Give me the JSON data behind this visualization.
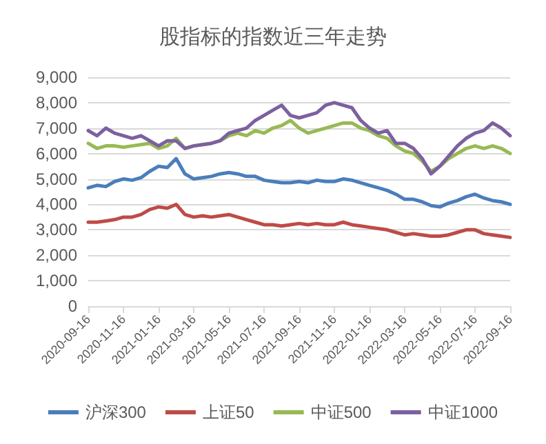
{
  "chart_data": {
    "type": "line",
    "title": "股指标的指数近三年走势",
    "categories": [
      "2020-09-16",
      null,
      null,
      null,
      "2020-11-16",
      null,
      null,
      null,
      "2021-01-16",
      null,
      null,
      null,
      "2021-03-16",
      null,
      null,
      null,
      "2021-05-16",
      null,
      null,
      null,
      "2021-07-16",
      null,
      null,
      null,
      "2021-09-16",
      null,
      null,
      null,
      "2021-11-16",
      null,
      null,
      null,
      "2022-01-16",
      null,
      null,
      null,
      "2022-03-16",
      null,
      null,
      null,
      "2022-05-16",
      null,
      null,
      null,
      "2022-07-16",
      null,
      null,
      null,
      "2022-09-16"
    ],
    "series": [
      {
        "name": "沪深300",
        "color": "#4a7ebb",
        "values": [
          4650,
          4750,
          4700,
          4900,
          5000,
          4950,
          5050,
          5300,
          5500,
          5450,
          5800,
          5200,
          5000,
          5050,
          5100,
          5200,
          5250,
          5200,
          5100,
          5100,
          4950,
          4900,
          4850,
          4850,
          4900,
          4850,
          4950,
          4900,
          4900,
          5000,
          4950,
          4850,
          4750,
          4650,
          4550,
          4400,
          4200,
          4200,
          4100,
          3950,
          3900,
          4050,
          4150,
          4300,
          4400,
          4250,
          4150,
          4100,
          4000
        ]
      },
      {
        "name": "上证50",
        "color": "#be4b48",
        "values": [
          3300,
          3300,
          3350,
          3400,
          3500,
          3500,
          3600,
          3800,
          3900,
          3850,
          4000,
          3600,
          3500,
          3550,
          3500,
          3550,
          3600,
          3500,
          3400,
          3300,
          3200,
          3200,
          3150,
          3200,
          3250,
          3200,
          3250,
          3200,
          3200,
          3300,
          3200,
          3150,
          3100,
          3050,
          3000,
          2900,
          2800,
          2850,
          2800,
          2750,
          2750,
          2800,
          2900,
          3000,
          3000,
          2850,
          2800,
          2750,
          2700
        ]
      },
      {
        "name": "中证500",
        "color": "#98b954",
        "values": [
          6400,
          6200,
          6300,
          6300,
          6250,
          6300,
          6350,
          6400,
          6200,
          6300,
          6600,
          6200,
          6300,
          6350,
          6400,
          6500,
          6700,
          6800,
          6700,
          6900,
          6800,
          7000,
          7100,
          7300,
          7000,
          6800,
          6900,
          7000,
          7100,
          7200,
          7200,
          7000,
          6900,
          6700,
          6600,
          6300,
          6100,
          6000,
          5700,
          5300,
          5500,
          5800,
          6000,
          6200,
          6300,
          6200,
          6300,
          6200,
          6000
        ]
      },
      {
        "name": "中证1000",
        "color": "#7d60a0",
        "values": [
          6900,
          6700,
          7000,
          6800,
          6700,
          6600,
          6700,
          6500,
          6300,
          6500,
          6500,
          6200,
          6300,
          6350,
          6400,
          6500,
          6800,
          6900,
          7000,
          7300,
          7500,
          7700,
          7900,
          7500,
          7400,
          7500,
          7600,
          7900,
          8000,
          7900,
          7800,
          7300,
          7000,
          6800,
          6900,
          6400,
          6400,
          6200,
          5800,
          5200,
          5500,
          5900,
          6300,
          6600,
          6800,
          6900,
          7200,
          7000,
          6700
        ]
      }
    ],
    "ylim": [
      0,
      9000
    ],
    "yticks": [
      0,
      {
        "value": 1000,
        "label": "1,000"
      },
      {
        "value": 2000,
        "label": "2,000"
      },
      {
        "value": 3000,
        "label": "3,000"
      },
      {
        "value": 4000,
        "label": "4,000"
      },
      {
        "value": 5000,
        "label": "5,000"
      },
      {
        "value": 6000,
        "label": "6,000"
      },
      {
        "value": 7000,
        "label": "7,000"
      },
      {
        "value": 8000,
        "label": "8,000"
      },
      {
        "value": 9000,
        "label": "9,000"
      }
    ],
    "grid": "y",
    "legend": "bottom",
    "marker": "none",
    "line_style": "solid"
  }
}
